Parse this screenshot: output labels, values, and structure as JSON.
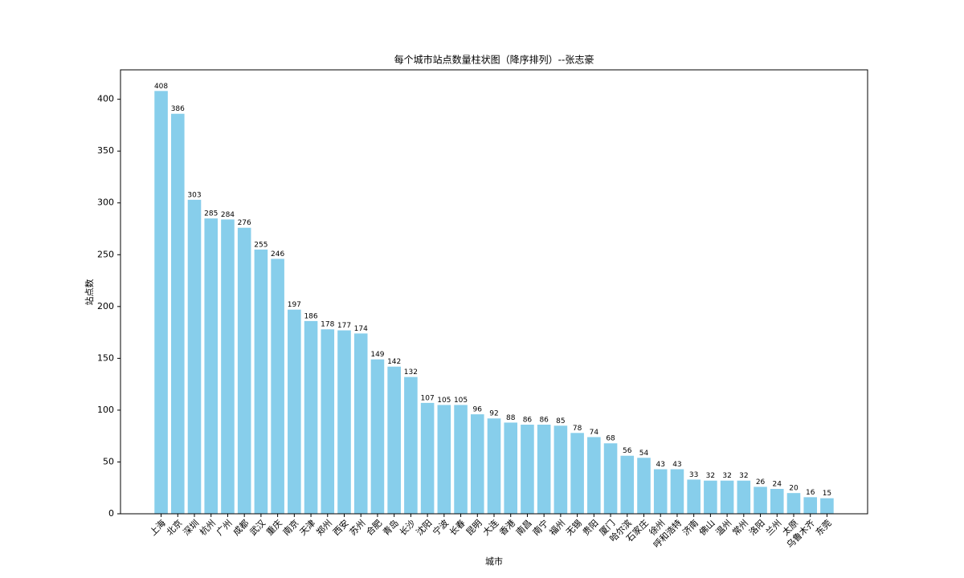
{
  "chart_data": {
    "type": "bar",
    "title": "每个城市站点数量柱状图（降序排列）--张志豪",
    "x_label": "城市",
    "y_label": "站点数",
    "categories": [
      "上海",
      "北京",
      "深圳",
      "杭州",
      "广州",
      "成都",
      "武汉",
      "重庆",
      "南京",
      "天津",
      "郑州",
      "西安",
      "苏州",
      "合肥",
      "青岛",
      "长沙",
      "沈阳",
      "宁波",
      "长春",
      "昆明",
      "大连",
      "香港",
      "南昌",
      "南宁",
      "福州",
      "无锡",
      "贵阳",
      "厦门",
      "哈尔滨",
      "石家庄",
      "徐州",
      "呼和浩特",
      "济南",
      "佛山",
      "温州",
      "常州",
      "洛阳",
      "兰州",
      "太原",
      "乌鲁木齐",
      "东莞"
    ],
    "values": [
      408,
      386,
      303,
      285,
      284,
      276,
      255,
      246,
      197,
      186,
      178,
      177,
      174,
      149,
      142,
      132,
      107,
      105,
      105,
      96,
      92,
      88,
      86,
      86,
      85,
      78,
      74,
      68,
      56,
      54,
      43,
      43,
      33,
      32,
      32,
      32,
      26,
      24,
      20,
      16,
      15
    ],
    "color": "#87ceeb",
    "ylim": [
      0,
      428.4
    ],
    "yticks": [
      0,
      50,
      100,
      150,
      200,
      250,
      300,
      350,
      400
    ],
    "grid": false
  }
}
